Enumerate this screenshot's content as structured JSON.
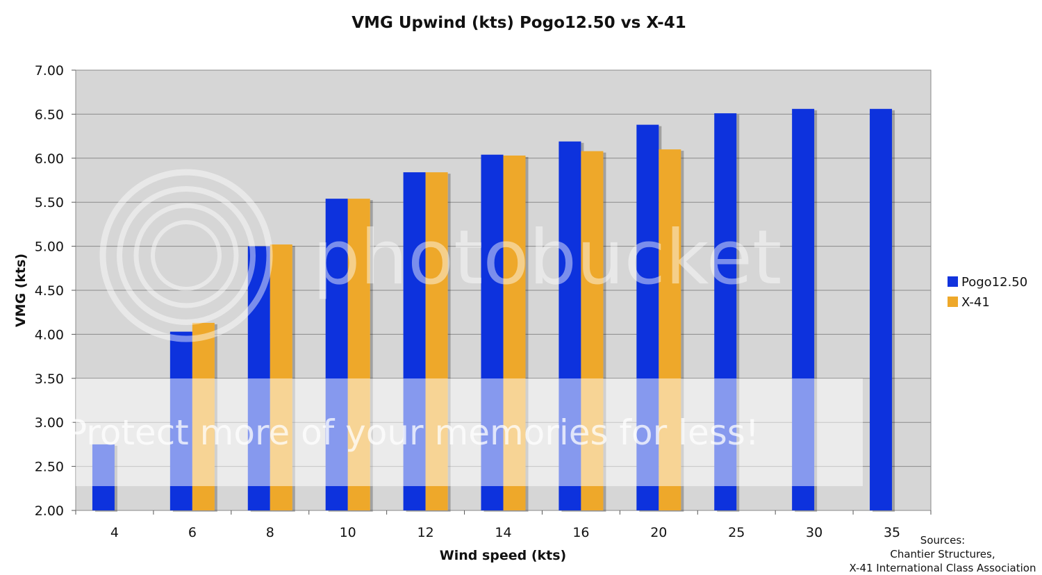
{
  "chart_data": {
    "type": "bar",
    "title": "VMG Upwind (kts) Pogo12.50 vs X-41",
    "xlabel": "Wind speed (kts)",
    "ylabel": "VMG (kts)",
    "categories": [
      "4",
      "6",
      "8",
      "10",
      "12",
      "14",
      "16",
      "20",
      "25",
      "30",
      "35"
    ],
    "ylim": [
      2.0,
      7.0
    ],
    "yticks": [
      "2.00",
      "2.50",
      "3.00",
      "3.50",
      "4.00",
      "4.50",
      "5.00",
      "5.50",
      "6.00",
      "6.50",
      "7.00"
    ],
    "grid": true,
    "legend_position": "right",
    "series": [
      {
        "name": "Pogo12.50",
        "color": "#1133dd",
        "values": [
          2.75,
          4.03,
          5.0,
          5.54,
          5.84,
          6.04,
          6.19,
          6.38,
          6.51,
          6.56,
          6.56
        ]
      },
      {
        "name": "X-41",
        "color": "#eea82a",
        "values": [
          null,
          4.13,
          5.02,
          5.54,
          5.84,
          6.03,
          6.08,
          6.1,
          null,
          null,
          null
        ]
      }
    ],
    "plot_background": "#d6d6d6",
    "annotation": {
      "label": "Sources:",
      "lines": [
        "Chantier Structures,",
        "X-41 International Class Association"
      ]
    }
  },
  "watermark": {
    "logo_text": "photobucket",
    "banner_text": "Protect more of your memories for less!"
  }
}
